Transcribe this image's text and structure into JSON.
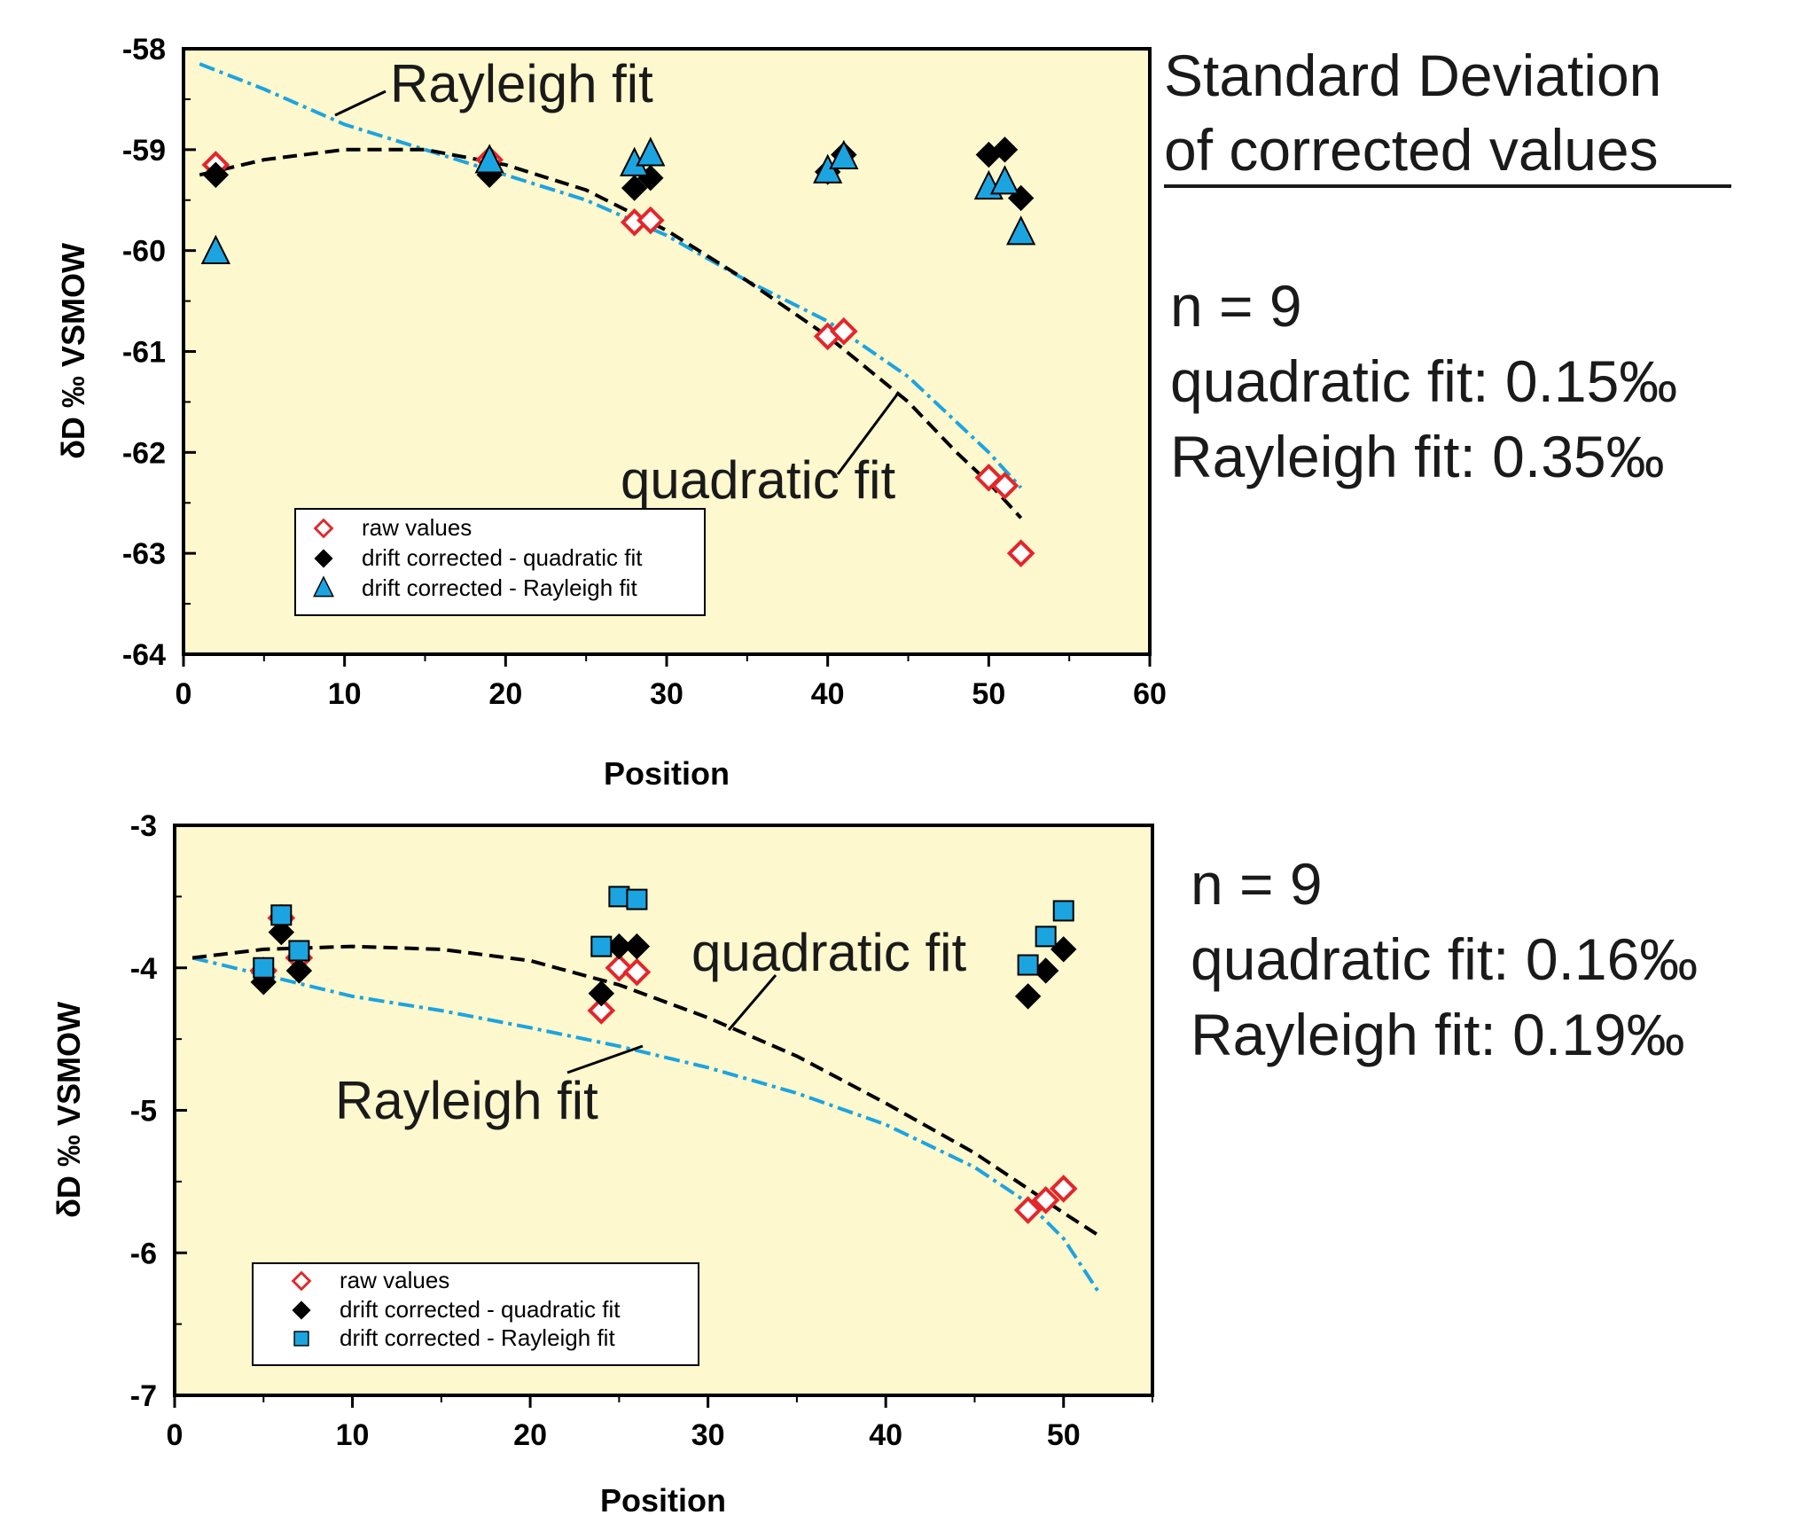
{
  "colors": {
    "plot_bg": "#fdf8cd",
    "raw": "#e3262c",
    "quad": "#000000",
    "rayleigh": "#1ca4e0",
    "rayleigh_line": "#1ca4e0",
    "quad_line": "#000000"
  },
  "side_title": {
    "line1": "Standard Deviation",
    "line2": "of corrected values"
  },
  "stats": [
    {
      "n": "n = 9",
      "quad": "quadratic fit: 0.15‰",
      "rayleigh": "Rayleigh fit:  0.35‰"
    },
    {
      "n": "n = 9",
      "quad": "quadratic fit: 0.16‰",
      "rayleigh": "Rayleigh fit:  0.19‰"
    }
  ],
  "chart_data": [
    {
      "type": "scatter",
      "xlabel": "Position",
      "ylabel": "δD ‰ VSMOW",
      "xlim": [
        0,
        60
      ],
      "ylim": [
        -64,
        -58
      ],
      "xticks": [
        0,
        10,
        20,
        30,
        40,
        50,
        60
      ],
      "yticks": [
        -58,
        -59,
        -60,
        -61,
        -62,
        -63,
        -64
      ],
      "ylabels": [
        "-58",
        "-59",
        "-60",
        "-61",
        "-62",
        "-63",
        "-64"
      ],
      "legend": {
        "position": "bottom-left",
        "entries": [
          "raw values",
          "drift corrected - quadratic fit",
          "drift corrected - Rayleigh fit"
        ],
        "third_marker": "triangle"
      },
      "annotations": {
        "rayleigh": "Rayleigh fit",
        "quadratic": "quadratic fit"
      },
      "series": [
        {
          "name": "raw values",
          "marker": "diamond-open",
          "x": [
            2,
            19,
            28,
            29,
            40,
            41,
            50,
            51,
            52
          ],
          "y": [
            -59.15,
            -59.1,
            -59.72,
            -59.7,
            -60.85,
            -60.8,
            -62.25,
            -62.33,
            -63.0
          ]
        },
        {
          "name": "drift corrected - quadratic fit",
          "marker": "diamond",
          "x": [
            2,
            19,
            28,
            29,
            40,
            41,
            50,
            51,
            52
          ],
          "y": [
            -59.25,
            -59.25,
            -59.38,
            -59.28,
            -59.22,
            -59.05,
            -59.05,
            -59.0,
            -59.48
          ]
        },
        {
          "name": "drift corrected - Rayleigh fit",
          "marker": "triangle",
          "x": [
            2,
            19,
            28,
            29,
            40,
            41,
            50,
            51,
            52
          ],
          "y": [
            -60.02,
            -59.12,
            -59.15,
            -59.05,
            -59.22,
            -59.08,
            -59.38,
            -59.33,
            -59.83
          ]
        }
      ],
      "fits": {
        "rayleigh": {
          "x": [
            1,
            5,
            10,
            15,
            20,
            25,
            30,
            35,
            40,
            45,
            48,
            50,
            52
          ],
          "y": [
            -58.15,
            -58.4,
            -58.75,
            -59.0,
            -59.25,
            -59.5,
            -59.85,
            -60.3,
            -60.7,
            -61.25,
            -61.7,
            -62.0,
            -62.35
          ]
        },
        "quadratic": {
          "x": [
            1,
            5,
            10,
            15,
            20,
            25,
            30,
            35,
            40,
            45,
            48,
            50,
            52
          ],
          "y": [
            -59.25,
            -59.1,
            -59.0,
            -59.0,
            -59.15,
            -59.4,
            -59.8,
            -60.3,
            -60.85,
            -61.5,
            -62.0,
            -62.3,
            -62.65
          ]
        }
      }
    },
    {
      "type": "scatter",
      "xlabel": "Position",
      "ylabel": "δD ‰ VSMOW",
      "xlim": [
        0,
        55
      ],
      "ylim": [
        -7,
        -3
      ],
      "xticks": [
        0,
        10,
        20,
        30,
        40,
        50
      ],
      "yticks": [
        -3,
        -4,
        -5,
        -6,
        -7
      ],
      "ylabels": [
        "-3",
        "-4",
        "-5",
        "-6",
        "-7"
      ],
      "legend": {
        "position": "bottom-left",
        "entries": [
          "raw values",
          "drift corrected - quadratic fit",
          "drift corrected - Rayleigh fit"
        ],
        "third_marker": "square"
      },
      "annotations": {
        "rayleigh": "Rayleigh fit",
        "quadratic": "quadratic fit"
      },
      "series": [
        {
          "name": "raw values",
          "marker": "diamond-open",
          "x": [
            5,
            6,
            7,
            24,
            25,
            26,
            48,
            49,
            50
          ],
          "y": [
            -4.02,
            -3.65,
            -3.93,
            -4.3,
            -4.0,
            -4.03,
            -5.7,
            -5.63,
            -5.55
          ]
        },
        {
          "name": "drift corrected - quadratic fit",
          "marker": "diamond",
          "x": [
            5,
            6,
            7,
            24,
            25,
            26,
            48,
            49,
            50
          ],
          "y": [
            -4.1,
            -3.75,
            -4.02,
            -4.18,
            -3.85,
            -3.85,
            -4.2,
            -4.02,
            -3.87
          ]
        },
        {
          "name": "drift corrected - Rayleigh fit",
          "marker": "square",
          "x": [
            5,
            6,
            7,
            24,
            25,
            26,
            48,
            49,
            50
          ],
          "y": [
            -4.0,
            -3.63,
            -3.88,
            -3.85,
            -3.5,
            -3.52,
            -3.98,
            -3.78,
            -3.6
          ]
        }
      ],
      "fits": {
        "quadratic": {
          "x": [
            1,
            5,
            10,
            15,
            20,
            25,
            30,
            35,
            40,
            45,
            48,
            50,
            52
          ],
          "y": [
            -3.93,
            -3.87,
            -3.85,
            -3.87,
            -3.95,
            -4.12,
            -4.35,
            -4.62,
            -4.95,
            -5.3,
            -5.55,
            -5.72,
            -5.88
          ]
        },
        "rayleigh": {
          "x": [
            1,
            5,
            10,
            15,
            20,
            25,
            30,
            35,
            40,
            45,
            48,
            50,
            52
          ],
          "y": [
            -3.93,
            -4.05,
            -4.2,
            -4.3,
            -4.42,
            -4.55,
            -4.7,
            -4.88,
            -5.1,
            -5.4,
            -5.65,
            -5.9,
            -6.28
          ]
        }
      }
    }
  ]
}
